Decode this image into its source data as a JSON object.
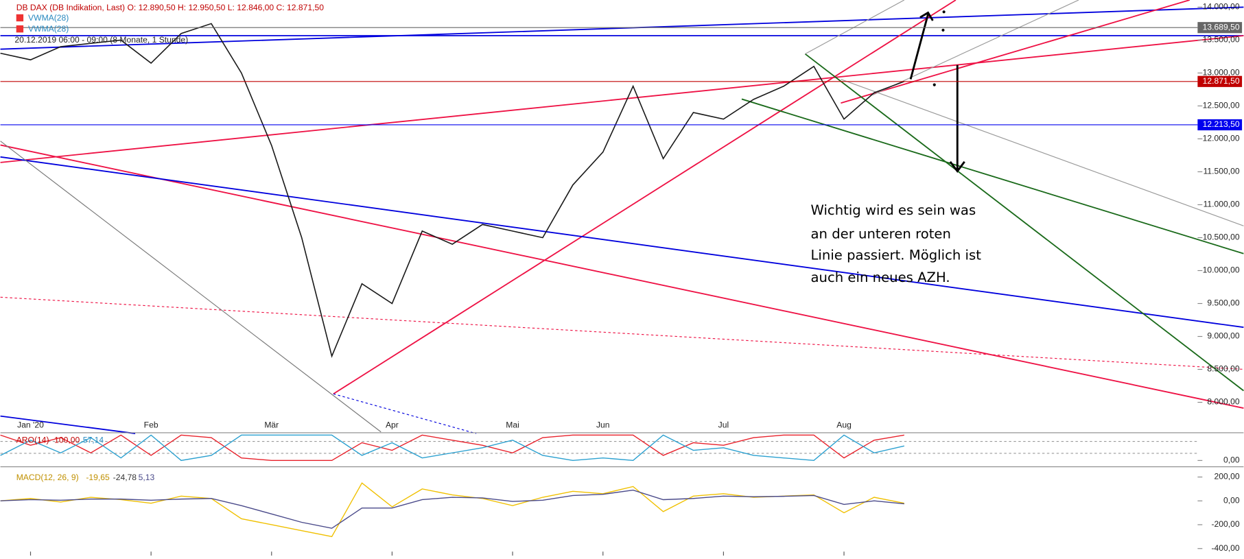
{
  "chart_data": [
    {
      "type": "line",
      "title": "DB DAX (DB Indikation, Last)",
      "quote": "O: 12.890,50  H: 12.950,50  L: 12.846,00  C: 12.871,50",
      "overlays": [
        "VWMA(28)",
        "VWMA(28)"
      ],
      "period": "20.12.2019 06:00 - 09:00  (8 Monate, 1 Stunde)",
      "categories": [
        null,
        "Jan '20",
        null,
        null,
        null,
        "Feb",
        null,
        null,
        null,
        "Mär",
        null,
        null,
        null,
        "Apr",
        null,
        null,
        null,
        "Mai",
        null,
        null,
        "Jun",
        null,
        null,
        null,
        "Jul",
        null,
        null,
        null,
        "Aug",
        null,
        null
      ],
      "series": [
        {
          "name": "DB DAX",
          "color": "#1a1a1a",
          "values": [
            13300,
            13200,
            13400,
            13450,
            13500,
            13150,
            13600,
            13750,
            13000,
            11900,
            10500,
            8700,
            9800,
            9500,
            10600,
            10400,
            10700,
            10600,
            10500,
            11300,
            11800,
            12800,
            11700,
            12400,
            12300,
            12600,
            12800,
            13100,
            12300,
            12700,
            12871.5
          ]
        }
      ],
      "ylim": [
        7550,
        14100
      ],
      "yticks": [
        {
          "value": 8000,
          "label": "8.000,00"
        },
        {
          "value": 8500,
          "label": "8.500,00"
        },
        {
          "value": 9000,
          "label": "9.000,00"
        },
        {
          "value": 9500,
          "label": "9.500,00"
        },
        {
          "value": 10000,
          "label": "10.000,00"
        },
        {
          "value": 10500,
          "label": "10.500,00"
        },
        {
          "value": 11000,
          "label": "11.000,00"
        },
        {
          "value": 11500,
          "label": "11.500,00"
        },
        {
          "value": 12000,
          "label": "12.000,00"
        },
        {
          "value": 12500,
          "label": "12.500,00"
        },
        {
          "value": 13000,
          "label": "13.000,00"
        },
        {
          "value": 13500,
          "label": "13.500,00"
        },
        {
          "value": 14000,
          "label": "14.000,00"
        }
      ],
      "levels": [
        {
          "value": 13689.5,
          "label": "13.689,50",
          "color": "#666666"
        },
        {
          "value": 12871.5,
          "label": "12.871,50",
          "color": "#c00000"
        },
        {
          "value": 12213.5,
          "label": "12.213,50",
          "color": "#0000ee"
        }
      ],
      "annotation": [
        "Wichtig wird es sein was",
        "an der unteren roten",
        "Linie passiert. Möglich ist",
        "auch ein neues AZH."
      ]
    },
    {
      "type": "line",
      "title": "ARO(14)",
      "readout": [
        "100,00",
        "57,14"
      ],
      "series": [
        {
          "name": "Aroon Up",
          "color": "#e8202a",
          "values": [
            100,
            60,
            90,
            30,
            100,
            20,
            100,
            90,
            10,
            0,
            0,
            0,
            70,
            40,
            100,
            80,
            60,
            30,
            90,
            100,
            100,
            100,
            20,
            70,
            60,
            90,
            100,
            100,
            10,
            80,
            100
          ]
        },
        {
          "name": "Aroon Down",
          "color": "#2aa0d0",
          "values": [
            20,
            80,
            30,
            90,
            10,
            100,
            0,
            20,
            100,
            100,
            100,
            100,
            20,
            70,
            10,
            30,
            50,
            80,
            20,
            0,
            10,
            0,
            100,
            40,
            50,
            20,
            10,
            0,
            100,
            30,
            57.14
          ]
        }
      ],
      "ylim": [
        0,
        100
      ],
      "yticks": [
        {
          "value": 0,
          "label": "0,00"
        }
      ]
    },
    {
      "type": "line",
      "title": "MACD(12, 26, 9)",
      "readout": [
        "-19,65",
        "-24,78",
        "5,13"
      ],
      "series": [
        {
          "name": "MACD",
          "color": "#f0c000",
          "values": [
            0,
            20,
            -10,
            30,
            10,
            -20,
            40,
            20,
            -150,
            -200,
            -250,
            -300,
            150,
            -50,
            100,
            50,
            20,
            -40,
            30,
            80,
            60,
            120,
            -90,
            40,
            60,
            30,
            40,
            50,
            -100,
            30,
            -19.65
          ]
        },
        {
          "name": "Signal",
          "color": "#4a4a8a",
          "values": [
            0,
            10,
            5,
            15,
            15,
            5,
            15,
            20,
            -40,
            -110,
            -180,
            -230,
            -60,
            -60,
            10,
            30,
            25,
            -5,
            5,
            45,
            55,
            90,
            10,
            20,
            40,
            35,
            38,
            45,
            -30,
            0,
            -24.78
          ]
        }
      ],
      "ylim": [
        -459,
        279
      ],
      "yticks": [
        {
          "value": 200,
          "label": "200,00"
        },
        {
          "value": 0,
          "label": "0,00"
        },
        {
          "value": -200,
          "label": "-200,00"
        },
        {
          "value": -400,
          "label": "-400,00"
        }
      ]
    }
  ]
}
